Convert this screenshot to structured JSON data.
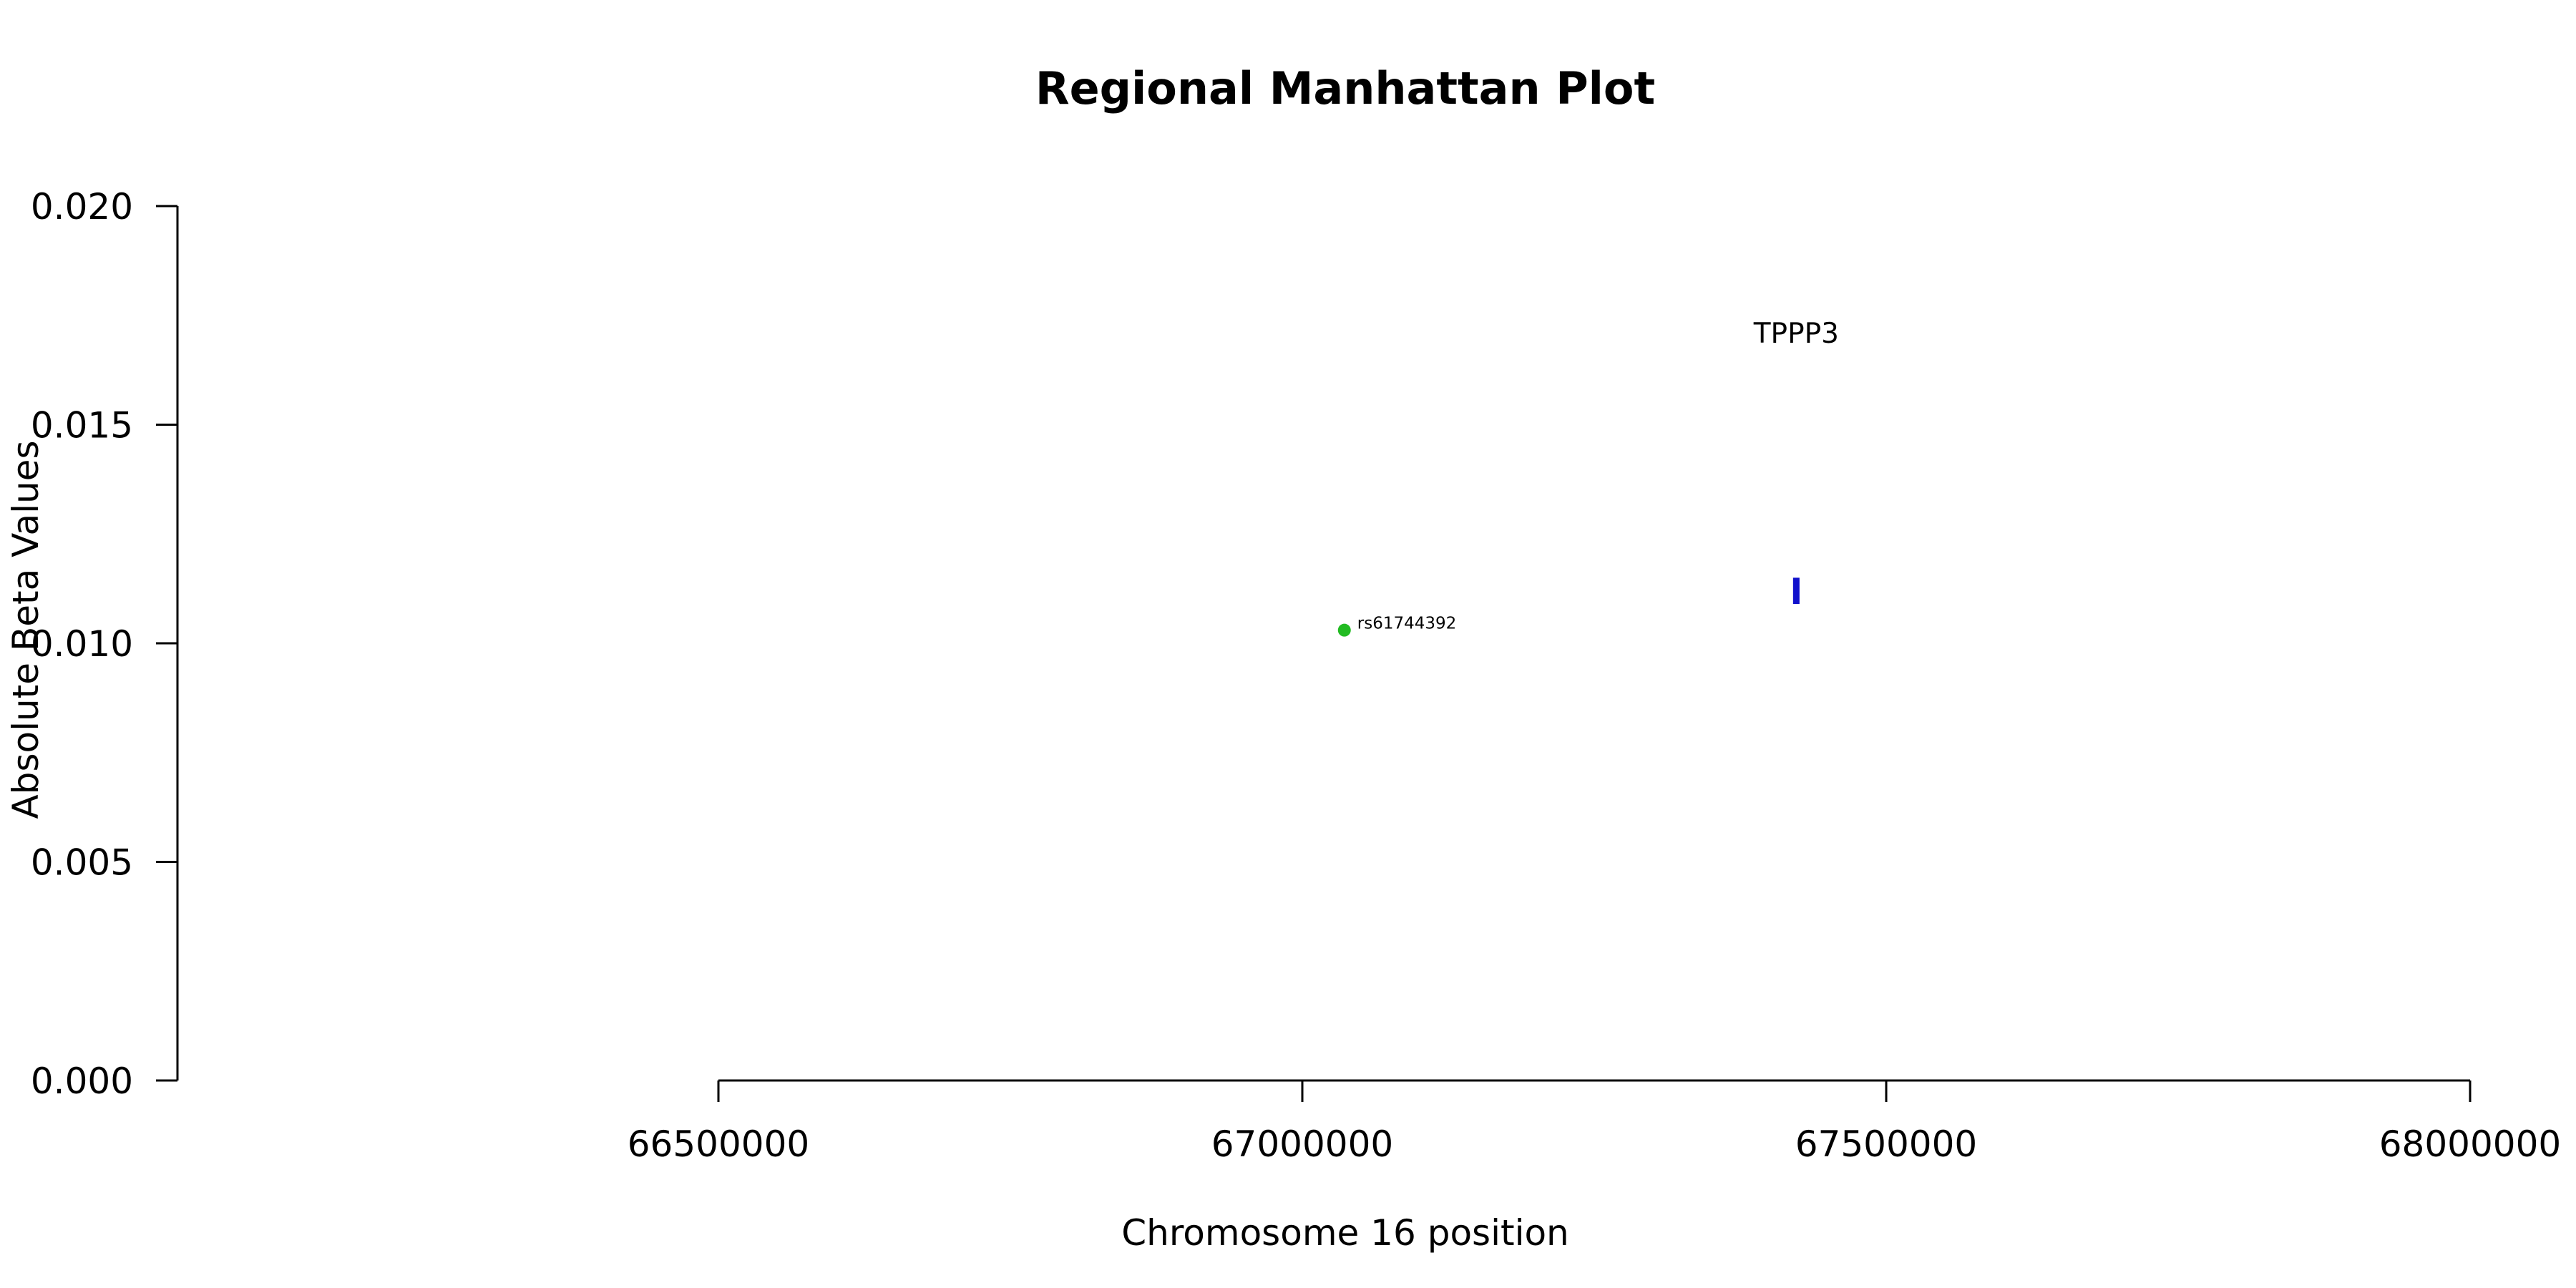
{
  "chart_data": {
    "type": "scatter",
    "title": "Regional Manhattan Plot",
    "xlabel": "Chromosome 16 position",
    "ylabel": "Absolute Beta Values",
    "xlim": [
      66500000,
      68000000
    ],
    "ylim": [
      0,
      0.02
    ],
    "x_ticks": [
      66500000,
      67000000,
      67500000,
      68000000
    ],
    "x_tick_labels": [
      "66500000",
      "67000000",
      "67500000",
      "68000000"
    ],
    "y_ticks": [
      0,
      0.005,
      0.01,
      0.015,
      0.02
    ],
    "y_tick_labels": [
      "0.000",
      "0.005",
      "0.010",
      "0.015",
      "0.020"
    ],
    "grid": false,
    "points": [
      {
        "label": "rs61744392",
        "x": 67036000,
        "y": 0.0103,
        "color": "#22bb22"
      }
    ],
    "genes": [
      {
        "label": "TPPP3",
        "x": 67423000,
        "y_low": 0.0109,
        "y_high": 0.0115,
        "label_y": 0.0171,
        "color": "#1111cc"
      }
    ]
  }
}
